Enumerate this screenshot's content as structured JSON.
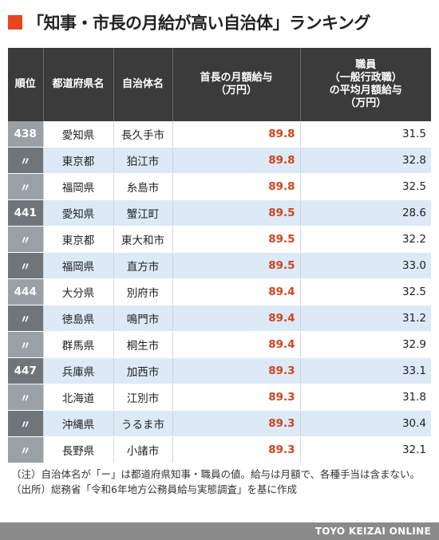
{
  "title": "「知事・市長の月給が高い自治体」ランキング",
  "table": {
    "headers": {
      "rank": "順位",
      "pref": "都道府県名",
      "city": "自治体名",
      "head": [
        "首長の月額給与",
        "（万円）"
      ],
      "staff": [
        "職員",
        "（一般行政職）",
        "の平均月額給与",
        "（万円）"
      ]
    },
    "rows": [
      {
        "rank": "438",
        "pref": "愛知県",
        "city": "長久手市",
        "head": "89.8",
        "staff": "31.5"
      },
      {
        "rank": "〃",
        "pref": "東京都",
        "city": "狛江市",
        "head": "89.8",
        "staff": "32.8"
      },
      {
        "rank": "〃",
        "pref": "福岡県",
        "city": "糸島市",
        "head": "89.8",
        "staff": "32.5"
      },
      {
        "rank": "441",
        "pref": "愛知県",
        "city": "蟹江町",
        "head": "89.5",
        "staff": "28.6"
      },
      {
        "rank": "〃",
        "pref": "東京都",
        "city": "東大和市",
        "head": "89.5",
        "staff": "32.2"
      },
      {
        "rank": "〃",
        "pref": "福岡県",
        "city": "直方市",
        "head": "89.5",
        "staff": "33.0"
      },
      {
        "rank": "444",
        "pref": "大分県",
        "city": "別府市",
        "head": "89.4",
        "staff": "32.5"
      },
      {
        "rank": "〃",
        "pref": "徳島県",
        "city": "鳴門市",
        "head": "89.4",
        "staff": "31.2"
      },
      {
        "rank": "〃",
        "pref": "群馬県",
        "city": "桐生市",
        "head": "89.4",
        "staff": "32.9"
      },
      {
        "rank": "447",
        "pref": "兵庫県",
        "city": "加西市",
        "head": "89.3",
        "staff": "33.1"
      },
      {
        "rank": "〃",
        "pref": "北海道",
        "city": "江別市",
        "head": "89.3",
        "staff": "31.8"
      },
      {
        "rank": "〃",
        "pref": "沖縄県",
        "city": "うるま市",
        "head": "89.3",
        "staff": "30.4"
      },
      {
        "rank": "〃",
        "pref": "長野県",
        "city": "小諸市",
        "head": "89.3",
        "staff": "32.1"
      }
    ]
  },
  "notes": [
    "（注）自治体名が「ー」は都道府県知事・職員の値。給与は月額で、各種手当は含まない。",
    "（出所）総務省「令和6年地方公務員給与実態調査」を基に作成"
  ],
  "footer": "TOYO KEIZAI ONLINE",
  "colors": {
    "accent": "#e8441f",
    "header_bg": "#3b3b3b",
    "alt_row": "#dbeaf6",
    "head_value": "#d2431c"
  }
}
